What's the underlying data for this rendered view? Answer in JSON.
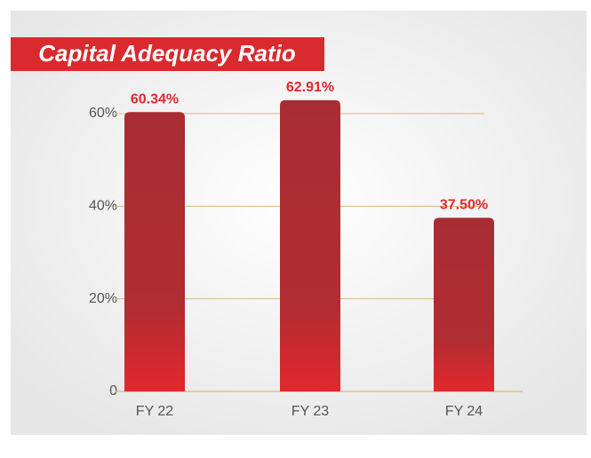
{
  "chart_data": {
    "type": "bar",
    "title": "Capital Adequacy Ratio",
    "categories": [
      "FY 22",
      "FY 23",
      "FY 24"
    ],
    "values": [
      60.34,
      62.91,
      37.5
    ],
    "value_labels": [
      "60.34%",
      "62.91%",
      "37.50%"
    ],
    "color": "#b02d32",
    "ylim": [
      0,
      60
    ],
    "yticks": [
      0,
      {
        "value": 20,
        "label": "20%"
      },
      {
        "value": 40,
        "label": "40%"
      },
      {
        "value": 60,
        "label": "60%"
      }
    ],
    "grid": true
  }
}
